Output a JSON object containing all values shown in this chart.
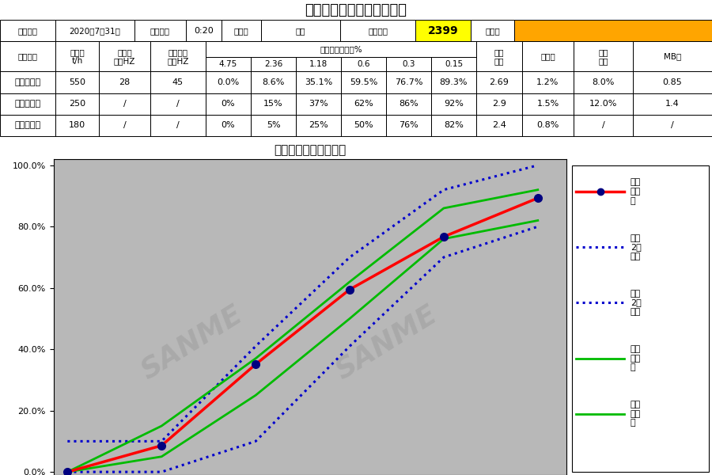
{
  "title": "精品机砂生产质量实时数据",
  "chart_title": "机制砂颗粒级配曲线图",
  "watermark": "SANME",
  "x_labels": [
    "4.75",
    "2.36",
    "1.18",
    "0.6",
    "0.3",
    "0.15"
  ],
  "x_values": [
    0,
    1,
    2,
    3,
    4,
    5
  ],
  "sample_y": [
    0.0,
    8.6,
    35.1,
    59.5,
    76.7,
    89.3
  ],
  "upper_limit_y": [
    0,
    15,
    37,
    62,
    86,
    92
  ],
  "lower_limit_y": [
    0,
    5,
    25,
    50,
    76,
    82
  ],
  "national_upper_y": [
    10,
    10,
    41,
    70,
    92,
    100
  ],
  "national_lower_y": [
    0,
    0,
    10,
    41,
    70,
    80
  ],
  "colors": {
    "sample": "#FF0000",
    "national": "#0000CD",
    "company_upper": "#00BB00",
    "company_lower": "#00BB00",
    "seq_no_bg": "#FFFF00",
    "tester_bg": "#FFA500",
    "chart_bg": "#B8B8B8",
    "legend_bg": "#FFFFFF",
    "table_bg": "#FFFFFF"
  },
  "row1_cells": [
    {
      "label": "试验日期",
      "value": "2020年7月31日"
    },
    {
      "label": "抽样时间",
      "value": "0:20"
    },
    {
      "label": "生产线",
      "value": "二期"
    },
    {
      "label": "试验序号",
      "value": "2399",
      "value_bg": "#FFFF00"
    },
    {
      "label": "试验人",
      "value": "",
      "value_bg": "#FFA500"
    }
  ],
  "data_rows": [
    {
      "name": "抽样试验值",
      "bold": true,
      "values": [
        "550",
        "28",
        "45",
        "0.0%",
        "8.6%",
        "35.1%",
        "59.5%",
        "76.7%",
        "89.3%",
        "2.69",
        "1.2%",
        "8.0%",
        "0.85"
      ]
    },
    {
      "name": "我司上限值",
      "bold": false,
      "values": [
        "250",
        "/",
        "/",
        "0%",
        "15%",
        "37%",
        "62%",
        "86%",
        "92%",
        "2.9",
        "1.5%",
        "12.0%",
        "1.4"
      ]
    },
    {
      "name": "我司下限值",
      "bold": false,
      "values": [
        "180",
        "/",
        "/",
        "0%",
        "5%",
        "25%",
        "50%",
        "76%",
        "82%",
        "2.4",
        "0.8%",
        "/",
        "/"
      ]
    }
  ]
}
